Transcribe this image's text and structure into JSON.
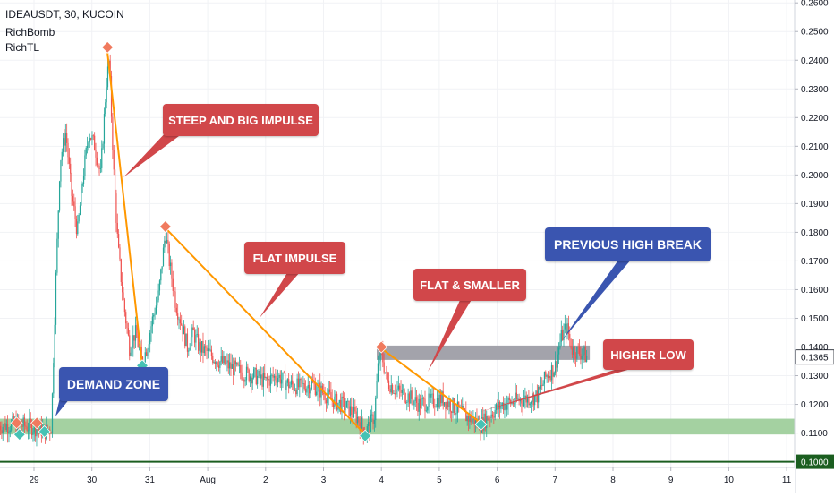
{
  "header": {
    "symbol": "IDEAUSDT, 30, KUCOIN",
    "indicator1": "RichBomb",
    "indicator2": "RichTL"
  },
  "annotations": {
    "steep": "STEEP AND BIG IMPULSE",
    "flat": "FLAT IMPULSE",
    "flat_smaller": "FLAT & SMALLER",
    "previous_high": "PREVIOUS HIGH BREAK",
    "higher_low": "HIGHER LOW",
    "demand": "DEMAND ZONE"
  },
  "colors": {
    "candle_up": "#26a69a",
    "candle_down": "#ef5350",
    "impulse_line": "#ff9800",
    "red_callout": "#d1474a",
    "blue_callout": "#3a55b0",
    "demand_zone": "#9fcf9c",
    "resistance_zone": "#9e9ea6",
    "support_line": "#1b5e20"
  },
  "chart_data": {
    "type": "candlestick",
    "y_axis": {
      "scale": "linear",
      "range": [
        0.098,
        0.261
      ],
      "ticks": [
        "0.2600",
        "0.2500",
        "0.2400",
        "0.2300",
        "0.2200",
        "0.2100",
        "0.2000",
        "0.1900",
        "0.1800",
        "0.1700",
        "0.1600",
        "0.1500",
        "0.1400",
        "0.1300",
        "0.1200",
        "0.1100"
      ],
      "last_price_label": "0.1365",
      "last_price": 0.1365,
      "support_label": "0.1000",
      "support_price": 0.1
    },
    "x_axis": {
      "ticks": [
        "29",
        "30",
        "31",
        "Aug",
        "2",
        "3",
        "4",
        "5",
        "6",
        "7",
        "8",
        "9",
        "10",
        "11"
      ],
      "tick_days": [
        0,
        1,
        2,
        3,
        4,
        5,
        6,
        7,
        8,
        9,
        10,
        11,
        12,
        13
      ]
    },
    "zones": [
      {
        "name": "demand zone",
        "low": 0.1095,
        "high": 0.115
      },
      {
        "name": "resistance zone",
        "low": 0.1355,
        "high": 0.1405
      }
    ],
    "impulse_lines": [
      {
        "name": "steep",
        "from": [
          1.27,
          0.2425
        ],
        "to": [
          1.87,
          0.1335
        ]
      },
      {
        "name": "flat",
        "from": [
          2.27,
          0.1815
        ],
        "to": [
          5.72,
          0.1095
        ]
      },
      {
        "name": "flat smaller",
        "from": [
          6.0,
          0.1395
        ],
        "to": [
          7.72,
          0.1135
        ]
      }
    ],
    "markers": [
      {
        "kind": "high",
        "day": -0.3,
        "price": 0.1135
      },
      {
        "kind": "high",
        "day": 0.05,
        "price": 0.1135
      },
      {
        "kind": "low",
        "day": -0.25,
        "price": 0.1095
      },
      {
        "kind": "low",
        "day": 0.18,
        "price": 0.1105
      },
      {
        "kind": "high",
        "day": 1.27,
        "price": 0.2445
      },
      {
        "kind": "low",
        "day": 1.87,
        "price": 0.1335
      },
      {
        "kind": "high",
        "day": 2.27,
        "price": 0.182
      },
      {
        "kind": "low",
        "day": 5.72,
        "price": 0.109
      },
      {
        "kind": "high",
        "day": 6.0,
        "price": 0.14
      },
      {
        "kind": "low",
        "day": 7.72,
        "price": 0.113
      }
    ],
    "price_path": [
      [
        -0.6,
        0.1125
      ],
      [
        -0.3,
        0.113
      ],
      [
        0.0,
        0.112
      ],
      [
        0.2,
        0.1105
      ],
      [
        0.3,
        0.112
      ],
      [
        0.38,
        0.165
      ],
      [
        0.45,
        0.205
      ],
      [
        0.55,
        0.215
      ],
      [
        0.65,
        0.193
      ],
      [
        0.75,
        0.18
      ],
      [
        0.85,
        0.2
      ],
      [
        0.95,
        0.215
      ],
      [
        1.05,
        0.21
      ],
      [
        1.15,
        0.2
      ],
      [
        1.25,
        0.232
      ],
      [
        1.3,
        0.24
      ],
      [
        1.38,
        0.2
      ],
      [
        1.45,
        0.175
      ],
      [
        1.55,
        0.155
      ],
      [
        1.65,
        0.14
      ],
      [
        1.75,
        0.145
      ],
      [
        1.87,
        0.1345
      ],
      [
        1.95,
        0.14
      ],
      [
        2.05,
        0.15
      ],
      [
        2.15,
        0.158
      ],
      [
        2.27,
        0.18
      ],
      [
        2.35,
        0.168
      ],
      [
        2.45,
        0.155
      ],
      [
        2.55,
        0.148
      ],
      [
        2.65,
        0.14
      ],
      [
        2.75,
        0.145
      ],
      [
        2.85,
        0.14
      ],
      [
        3.0,
        0.138
      ],
      [
        3.2,
        0.135
      ],
      [
        3.4,
        0.133
      ],
      [
        3.6,
        0.131
      ],
      [
        3.8,
        0.13
      ],
      [
        4.0,
        0.128
      ],
      [
        4.2,
        0.13
      ],
      [
        4.4,
        0.127
      ],
      [
        4.6,
        0.126
      ],
      [
        4.8,
        0.127
      ],
      [
        5.0,
        0.124
      ],
      [
        5.2,
        0.121
      ],
      [
        5.4,
        0.119
      ],
      [
        5.6,
        0.115
      ],
      [
        5.72,
        0.11
      ],
      [
        5.8,
        0.113
      ],
      [
        5.88,
        0.116
      ],
      [
        5.95,
        0.135
      ],
      [
        6.0,
        0.138
      ],
      [
        6.1,
        0.128
      ],
      [
        6.25,
        0.125
      ],
      [
        6.45,
        0.123
      ],
      [
        6.65,
        0.12
      ],
      [
        6.85,
        0.121
      ],
      [
        7.05,
        0.122
      ],
      [
        7.25,
        0.119
      ],
      [
        7.45,
        0.116
      ],
      [
        7.72,
        0.113
      ],
      [
        7.9,
        0.117
      ],
      [
        8.1,
        0.12
      ],
      [
        8.3,
        0.121
      ],
      [
        8.5,
        0.122
      ],
      [
        8.7,
        0.123
      ],
      [
        8.85,
        0.13
      ],
      [
        9.0,
        0.133
      ],
      [
        9.1,
        0.143
      ],
      [
        9.2,
        0.147
      ],
      [
        9.3,
        0.139
      ],
      [
        9.45,
        0.138
      ],
      [
        9.55,
        0.1365
      ]
    ]
  }
}
